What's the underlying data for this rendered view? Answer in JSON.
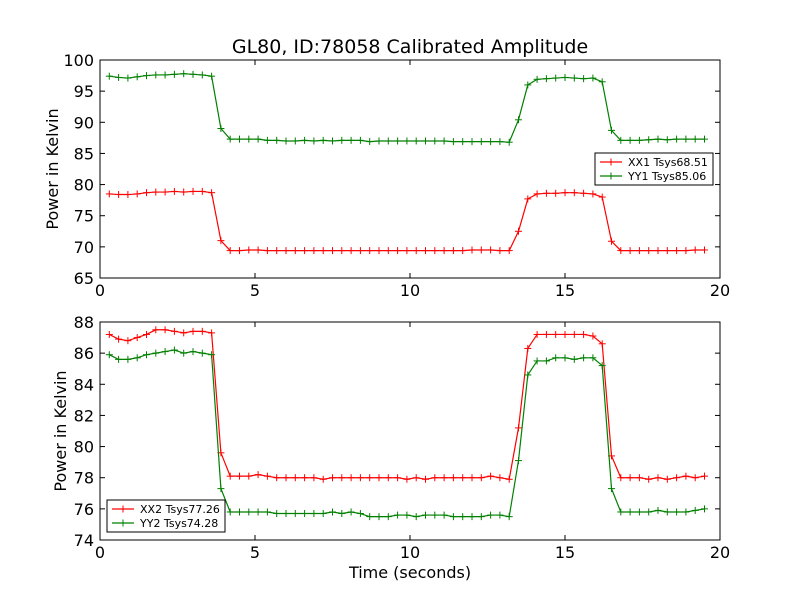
{
  "title": "GL80, ID:78058 Calibrated Amplitude",
  "colors": {
    "red": "#ff0000",
    "green": "#008000"
  },
  "chart_data": [
    {
      "type": "line",
      "title": "GL80, ID:78058 Calibrated Amplitude",
      "xlabel": "",
      "ylabel": "Power in Kelvin",
      "xlim": [
        0,
        20
      ],
      "ylim": [
        65,
        100
      ],
      "xticks": [
        "0",
        "5",
        "10",
        "15",
        "20"
      ],
      "yticks": [
        "65",
        "70",
        "75",
        "80",
        "85",
        "90",
        "95",
        "100"
      ],
      "legend_placement": "center-right",
      "x": [
        0.3,
        0.6,
        0.9,
        1.2,
        1.5,
        1.8,
        2.1,
        2.4,
        2.7,
        3.0,
        3.3,
        3.6,
        3.9,
        4.2,
        4.5,
        4.8,
        5.1,
        5.4,
        5.7,
        6.0,
        6.3,
        6.6,
        6.9,
        7.2,
        7.5,
        7.8,
        8.1,
        8.4,
        8.7,
        9.0,
        9.3,
        9.6,
        9.9,
        10.2,
        10.5,
        10.8,
        11.1,
        11.4,
        11.7,
        12.0,
        12.3,
        12.6,
        12.9,
        13.2,
        13.5,
        13.8,
        14.1,
        14.4,
        14.7,
        15.0,
        15.3,
        15.6,
        15.9,
        16.2,
        16.5,
        16.8,
        17.1,
        17.4,
        17.7,
        18.0,
        18.3,
        18.6,
        18.9,
        19.2,
        19.5
      ],
      "series": [
        {
          "name": "XX1 Tsys68.51",
          "color": "#ff0000",
          "values": [
            78.5,
            78.4,
            78.4,
            78.5,
            78.7,
            78.8,
            78.8,
            78.9,
            78.8,
            78.9,
            78.9,
            78.7,
            71.0,
            69.4,
            69.4,
            69.5,
            69.5,
            69.4,
            69.4,
            69.4,
            69.4,
            69.4,
            69.4,
            69.4,
            69.4,
            69.4,
            69.4,
            69.4,
            69.4,
            69.4,
            69.4,
            69.4,
            69.4,
            69.4,
            69.4,
            69.4,
            69.4,
            69.4,
            69.4,
            69.5,
            69.5,
            69.5,
            69.4,
            69.4,
            72.5,
            77.7,
            78.5,
            78.6,
            78.6,
            78.7,
            78.7,
            78.6,
            78.5,
            78.0,
            70.9,
            69.4,
            69.4,
            69.4,
            69.4,
            69.4,
            69.4,
            69.4,
            69.4,
            69.5,
            69.5
          ]
        },
        {
          "name": "YY1 Tsys85.06",
          "color": "#008000",
          "values": [
            97.4,
            97.2,
            97.1,
            97.3,
            97.5,
            97.6,
            97.6,
            97.7,
            97.8,
            97.7,
            97.6,
            97.4,
            89.0,
            87.3,
            87.3,
            87.3,
            87.3,
            87.1,
            87.1,
            87.0,
            87.0,
            87.1,
            87.0,
            87.1,
            87.0,
            87.1,
            87.1,
            87.1,
            86.9,
            87.0,
            87.0,
            87.0,
            87.0,
            87.0,
            87.0,
            87.0,
            87.0,
            86.9,
            86.9,
            86.9,
            86.9,
            86.9,
            86.9,
            86.8,
            90.4,
            96.0,
            96.9,
            97.0,
            97.1,
            97.2,
            97.1,
            97.0,
            97.1,
            96.5,
            88.7,
            87.1,
            87.1,
            87.1,
            87.2,
            87.3,
            87.2,
            87.3,
            87.3,
            87.3,
            87.3
          ]
        }
      ]
    },
    {
      "type": "line",
      "title": "",
      "xlabel": "Time (seconds)",
      "ylabel": "Power in Kelvin",
      "xlim": [
        0,
        20
      ],
      "ylim": [
        74,
        88
      ],
      "xticks": [
        "0",
        "5",
        "10",
        "15",
        "20"
      ],
      "yticks": [
        "74",
        "76",
        "78",
        "80",
        "82",
        "84",
        "86",
        "88"
      ],
      "legend_placement": "lower-left",
      "x": [
        0.3,
        0.6,
        0.9,
        1.2,
        1.5,
        1.8,
        2.1,
        2.4,
        2.7,
        3.0,
        3.3,
        3.6,
        3.9,
        4.2,
        4.5,
        4.8,
        5.1,
        5.4,
        5.7,
        6.0,
        6.3,
        6.6,
        6.9,
        7.2,
        7.5,
        7.8,
        8.1,
        8.4,
        8.7,
        9.0,
        9.3,
        9.6,
        9.9,
        10.2,
        10.5,
        10.8,
        11.1,
        11.4,
        11.7,
        12.0,
        12.3,
        12.6,
        12.9,
        13.2,
        13.5,
        13.8,
        14.1,
        14.4,
        14.7,
        15.0,
        15.3,
        15.6,
        15.9,
        16.2,
        16.5,
        16.8,
        17.1,
        17.4,
        17.7,
        18.0,
        18.3,
        18.6,
        18.9,
        19.2,
        19.5
      ],
      "series": [
        {
          "name": "XX2 Tsys77.26",
          "color": "#ff0000",
          "values": [
            87.2,
            86.9,
            86.8,
            87.0,
            87.2,
            87.5,
            87.5,
            87.4,
            87.3,
            87.4,
            87.4,
            87.3,
            79.6,
            78.1,
            78.1,
            78.1,
            78.2,
            78.1,
            78.0,
            78.0,
            78.0,
            78.0,
            78.0,
            77.9,
            78.0,
            78.0,
            78.0,
            78.0,
            78.0,
            78.0,
            78.0,
            78.0,
            77.9,
            78.0,
            77.9,
            78.0,
            78.0,
            78.0,
            78.0,
            78.0,
            78.0,
            78.1,
            78.0,
            77.9,
            81.2,
            86.3,
            87.2,
            87.2,
            87.2,
            87.2,
            87.2,
            87.2,
            87.1,
            86.6,
            79.4,
            78.0,
            78.0,
            78.0,
            77.9,
            78.0,
            77.9,
            78.0,
            78.1,
            78.0,
            78.1
          ]
        },
        {
          "name": "YY2 Tsys74.28",
          "color": "#008000",
          "values": [
            85.9,
            85.6,
            85.6,
            85.7,
            85.9,
            86.0,
            86.1,
            86.2,
            86.0,
            86.1,
            86.0,
            85.9,
            77.3,
            75.8,
            75.8,
            75.8,
            75.8,
            75.8,
            75.7,
            75.7,
            75.7,
            75.7,
            75.7,
            75.7,
            75.8,
            75.7,
            75.8,
            75.7,
            75.5,
            75.5,
            75.5,
            75.6,
            75.6,
            75.5,
            75.6,
            75.6,
            75.6,
            75.5,
            75.5,
            75.5,
            75.5,
            75.6,
            75.6,
            75.5,
            79.1,
            84.6,
            85.5,
            85.5,
            85.7,
            85.7,
            85.6,
            85.7,
            85.7,
            85.2,
            77.3,
            75.8,
            75.8,
            75.8,
            75.8,
            75.9,
            75.8,
            75.8,
            75.8,
            75.9,
            76.0
          ]
        }
      ]
    }
  ]
}
